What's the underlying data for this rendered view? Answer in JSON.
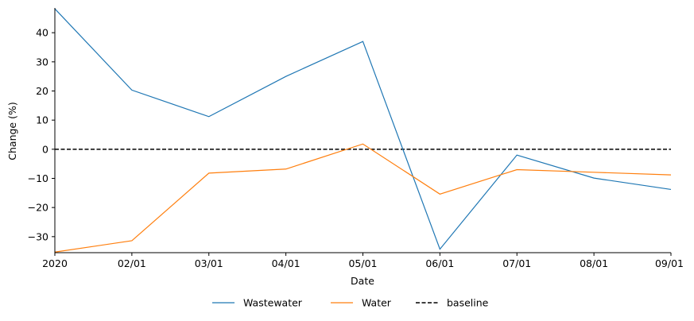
{
  "chart_data": {
    "type": "line",
    "xlabel": "Date",
    "ylabel": "Change (%)",
    "x": [
      "2020-01-01",
      "2020-02-01",
      "2020-03-01",
      "2020-04-01",
      "2020-05-01",
      "2020-06-01",
      "2020-07-01",
      "2020-08-01",
      "2020-09-01"
    ],
    "x_tick_labels": [
      "2020",
      "02/01",
      "03/01",
      "04/01",
      "05/01",
      "06/01",
      "07/01",
      "08/01",
      "09/01"
    ],
    "ylim": [
      -35.5,
      48.5
    ],
    "y_ticks": [
      -30,
      -20,
      -10,
      0,
      10,
      20,
      30,
      40
    ],
    "y_tick_labels": [
      "−30",
      "−20",
      "−10",
      "0",
      "10",
      "20",
      "30",
      "40"
    ],
    "series": [
      {
        "name": "Wastewater",
        "color": "#1f77b4",
        "style": "solid",
        "values": [
          48.2,
          20.3,
          11.2,
          25.0,
          37.0,
          -34.3,
          -2.0,
          -9.9,
          -13.8
        ]
      },
      {
        "name": "Water",
        "color": "#ff7f0e",
        "style": "solid",
        "values": [
          -35.3,
          -31.4,
          -8.2,
          -6.8,
          1.8,
          -15.4,
          -7.0,
          -7.9,
          -8.8
        ]
      }
    ],
    "baseline": {
      "name": "baseline",
      "value": 0,
      "color": "#000000",
      "style": "dashed"
    },
    "legend_position": "bottom-center",
    "grid": false
  }
}
